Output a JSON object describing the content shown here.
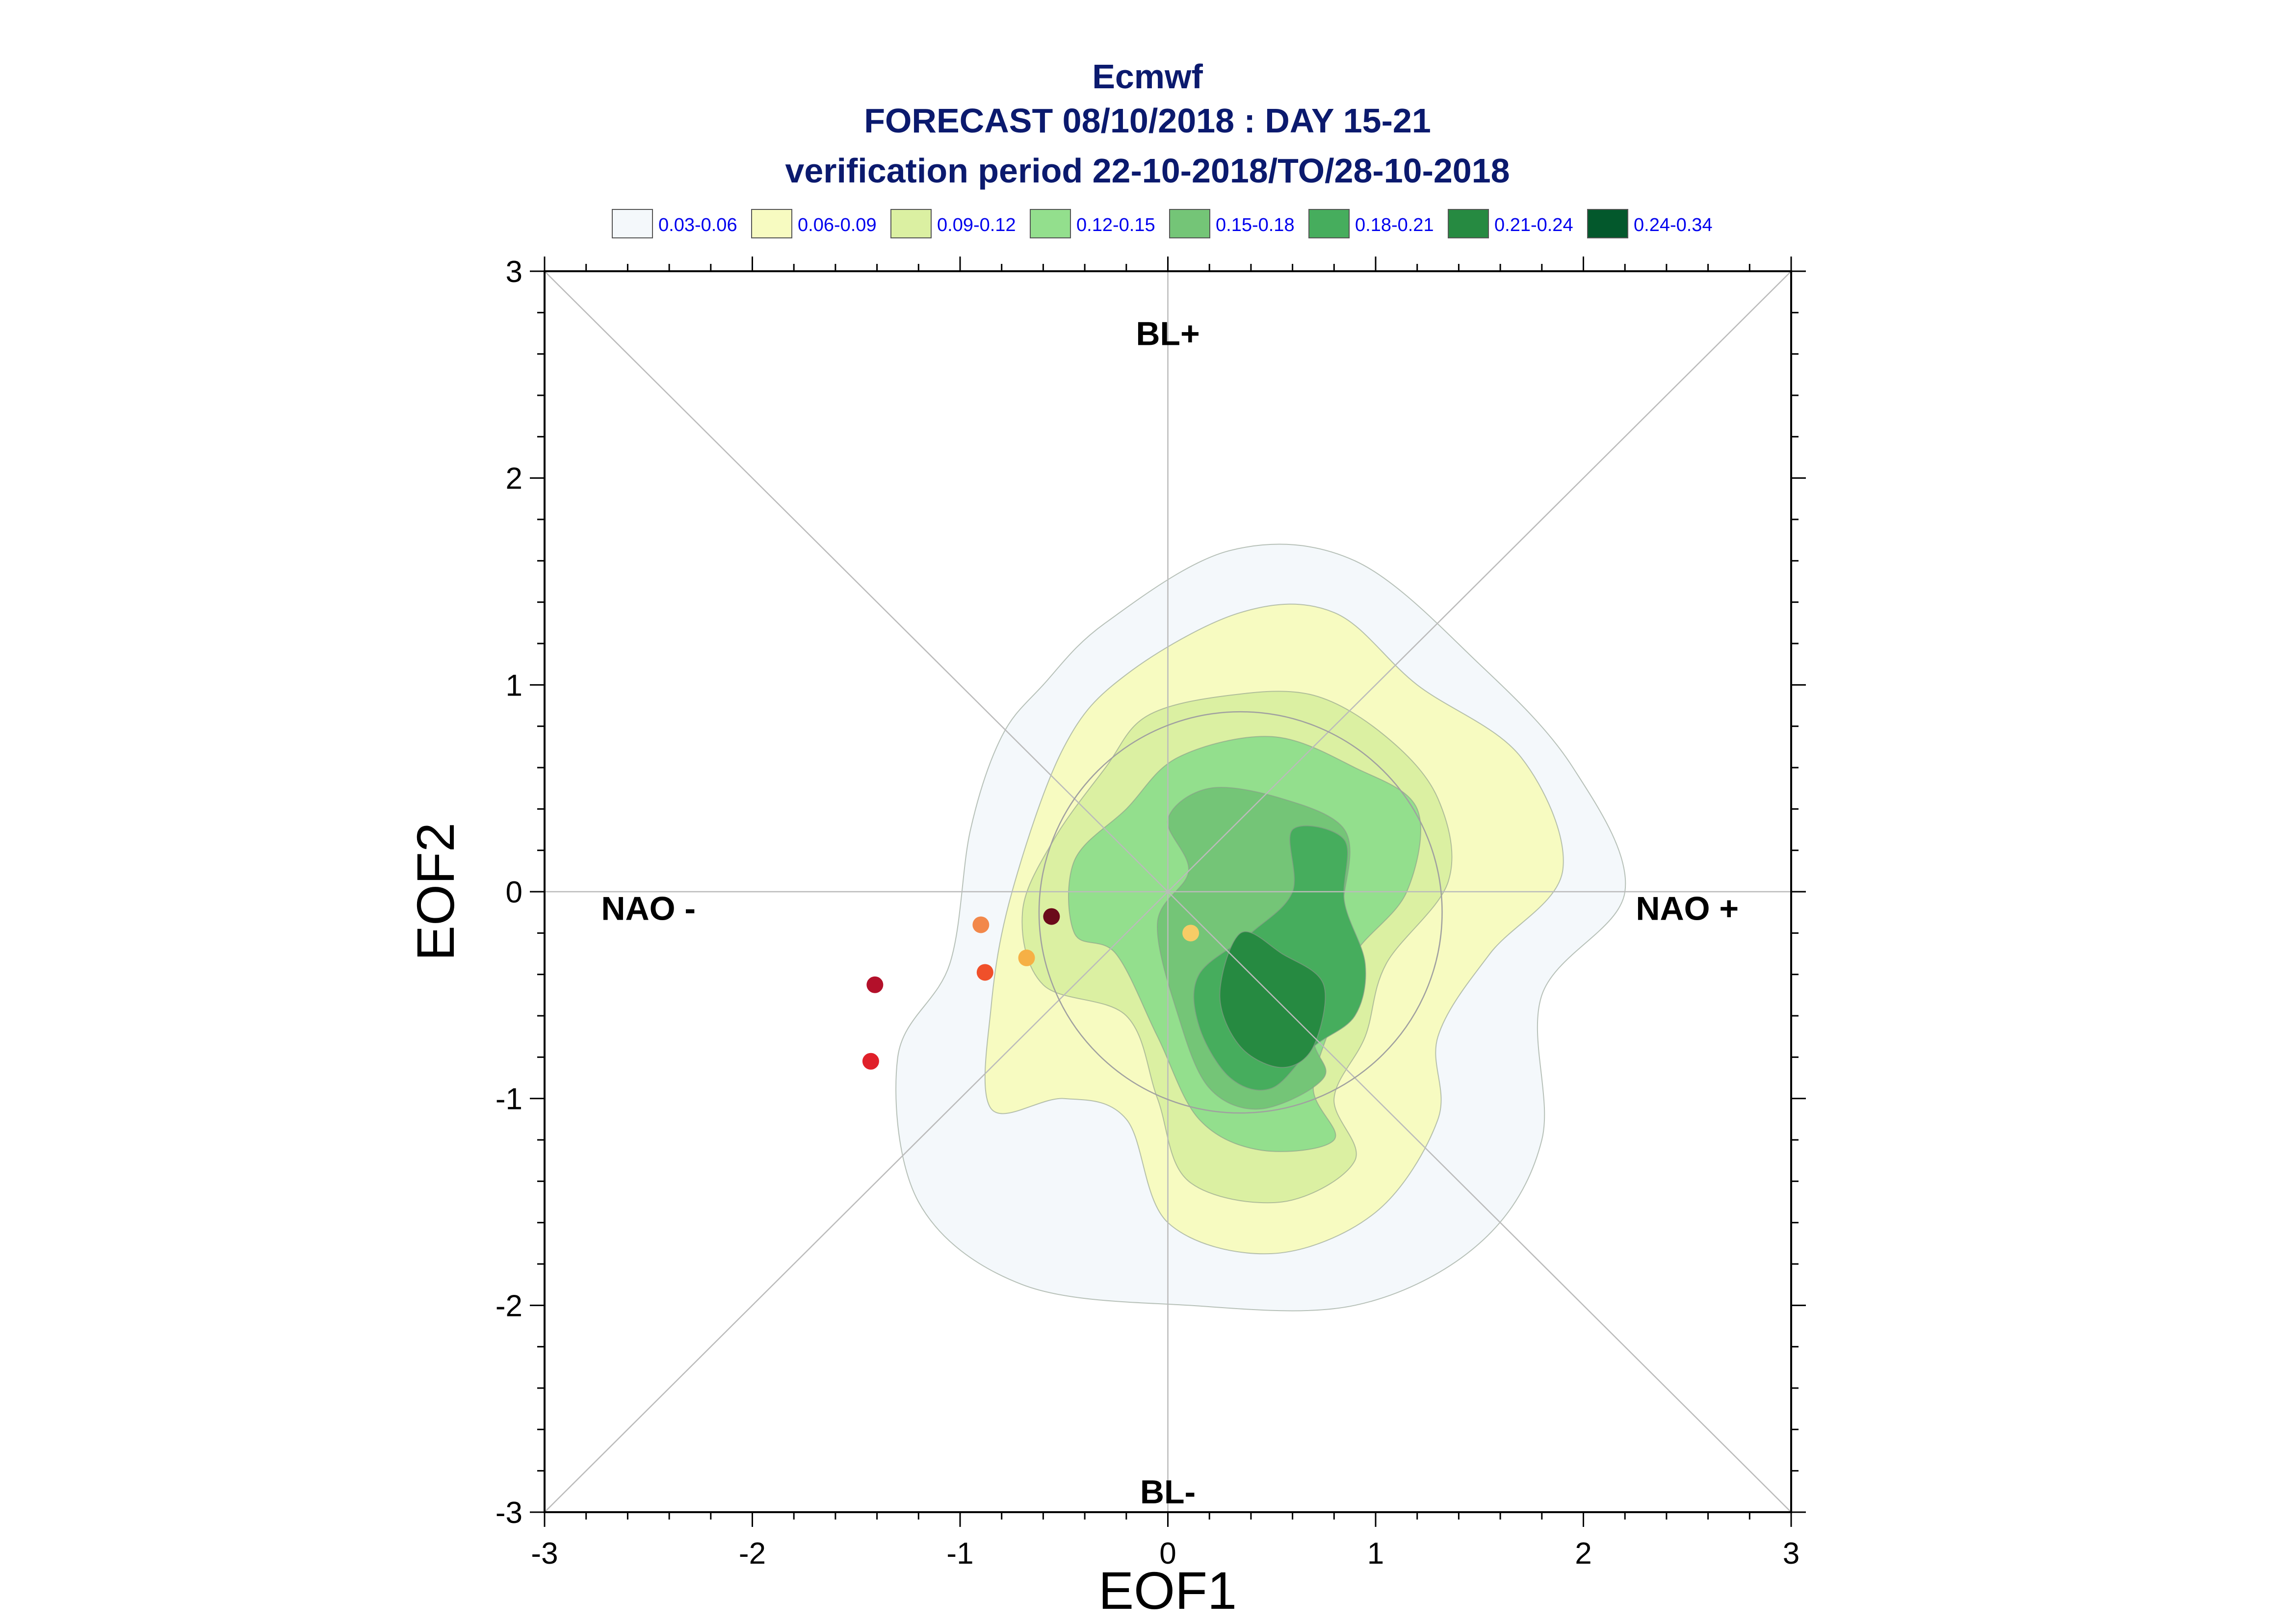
{
  "chart_data": {
    "type": "contour",
    "title_lines": [
      "Ecmwf",
      "FORECAST 08/10/2018 : DAY 15-21",
      "verification period 22-10-2018/TO/28-10-2018"
    ],
    "xlabel": "EOF1",
    "ylabel": "EOF2",
    "xlim": [
      -3,
      3
    ],
    "ylim": [
      -3,
      3
    ],
    "x_ticks": [
      "-3",
      "-2",
      "-1",
      "0",
      "1",
      "2",
      "3"
    ],
    "y_ticks": [
      "3",
      "2",
      "1",
      "0",
      "-1",
      "-2",
      "-3"
    ],
    "regimes": [
      {
        "label": "BL+",
        "x": 0,
        "y": 2.7
      },
      {
        "label": "BL-",
        "x": 0,
        "y": -2.9
      },
      {
        "label": "NAO -",
        "x": -2.5,
        "y": -0.08
      },
      {
        "label": "NAO +",
        "x": 2.5,
        "y": -0.08
      }
    ],
    "legend": [
      {
        "label": "0.03-0.06",
        "color": "#f4f8fb"
      },
      {
        "label": "0.06-0.09",
        "color": "#f7fbc1"
      },
      {
        "label": "0.09-0.12",
        "color": "#dbf0a2"
      },
      {
        "label": "0.12-0.15",
        "color": "#93df8d"
      },
      {
        "label": "0.15-0.18",
        "color": "#74c577"
      },
      {
        "label": "0.18-0.21",
        "color": "#46ad5d"
      },
      {
        "label": "0.21-0.24",
        "color": "#268a41"
      },
      {
        "label": "0.24-0.34",
        "color": "#03582c"
      }
    ],
    "contours": [
      {
        "level": "0.03-0.06",
        "color": "#f4f8fb",
        "points": [
          [
            -0.6,
            1.0
          ],
          [
            -0.3,
            1.3
          ],
          [
            0.3,
            1.65
          ],
          [
            0.9,
            1.6
          ],
          [
            1.5,
            1.1
          ],
          [
            1.95,
            0.6
          ],
          [
            2.2,
            0.0
          ],
          [
            1.8,
            -0.5
          ],
          [
            1.8,
            -1.2
          ],
          [
            1.5,
            -1.7
          ],
          [
            0.9,
            -2.0
          ],
          [
            0.1,
            -2.0
          ],
          [
            -0.7,
            -1.9
          ],
          [
            -1.2,
            -1.5
          ],
          [
            -1.3,
            -0.8
          ],
          [
            -1.05,
            -0.35
          ],
          [
            -0.95,
            0.3
          ],
          [
            -0.8,
            0.75
          ]
        ]
      },
      {
        "level": "0.06-0.09",
        "color": "#f7fbc1",
        "points": [
          [
            -0.5,
            0.7
          ],
          [
            -0.2,
            1.05
          ],
          [
            0.35,
            1.35
          ],
          [
            0.8,
            1.35
          ],
          [
            1.2,
            1.0
          ],
          [
            1.7,
            0.65
          ],
          [
            1.9,
            0.1
          ],
          [
            1.55,
            -0.3
          ],
          [
            1.3,
            -0.7
          ],
          [
            1.3,
            -1.1
          ],
          [
            1.0,
            -1.55
          ],
          [
            0.5,
            -1.75
          ],
          [
            0.0,
            -1.6
          ],
          [
            -0.2,
            -1.1
          ],
          [
            -0.5,
            -1.0
          ],
          [
            -0.85,
            -1.05
          ],
          [
            -0.85,
            -0.55
          ],
          [
            -0.75,
            0.0
          ]
        ]
      },
      {
        "level": "0.09-0.12",
        "color": "#dbf0a2",
        "points": [
          [
            -0.3,
            0.6
          ],
          [
            -0.1,
            0.85
          ],
          [
            0.3,
            0.95
          ],
          [
            0.7,
            0.95
          ],
          [
            1.05,
            0.75
          ],
          [
            1.3,
            0.45
          ],
          [
            1.35,
            0.05
          ],
          [
            1.05,
            -0.35
          ],
          [
            0.95,
            -0.7
          ],
          [
            0.8,
            -1.0
          ],
          [
            0.9,
            -1.3
          ],
          [
            0.55,
            -1.5
          ],
          [
            0.1,
            -1.4
          ],
          [
            -0.05,
            -1.0
          ],
          [
            -0.2,
            -0.6
          ],
          [
            -0.6,
            -0.45
          ],
          [
            -0.7,
            -0.1
          ],
          [
            -0.55,
            0.25
          ]
        ]
      },
      {
        "level": "0.12-0.15",
        "color": "#93df8d",
        "points": [
          [
            -0.2,
            0.4
          ],
          [
            0.05,
            0.65
          ],
          [
            0.5,
            0.75
          ],
          [
            0.9,
            0.6
          ],
          [
            1.2,
            0.4
          ],
          [
            1.15,
            0.0
          ],
          [
            0.9,
            -0.3
          ],
          [
            0.8,
            -0.6
          ],
          [
            0.7,
            -0.95
          ],
          [
            0.8,
            -1.2
          ],
          [
            0.45,
            -1.25
          ],
          [
            0.15,
            -1.1
          ],
          [
            -0.05,
            -0.7
          ],
          [
            -0.25,
            -0.3
          ],
          [
            -0.45,
            -0.2
          ],
          [
            -0.45,
            0.15
          ]
        ]
      },
      {
        "level": "0.15-0.18",
        "color": "#74c577",
        "points": [
          [
            0.2,
            0.5
          ],
          [
            0.55,
            0.45
          ],
          [
            0.85,
            0.3
          ],
          [
            0.85,
            0.0
          ],
          [
            0.75,
            -0.3
          ],
          [
            0.7,
            -0.7
          ],
          [
            0.75,
            -0.9
          ],
          [
            0.45,
            -1.05
          ],
          [
            0.2,
            -0.95
          ],
          [
            0.05,
            -0.6
          ],
          [
            -0.05,
            -0.15
          ],
          [
            0.1,
            0.1
          ],
          [
            0.0,
            0.35
          ]
        ]
      },
      {
        "level": "0.18-0.21",
        "color": "#46ad5d",
        "points": [
          [
            0.6,
            0.3
          ],
          [
            0.85,
            0.25
          ],
          [
            0.85,
            -0.05
          ],
          [
            0.95,
            -0.35
          ],
          [
            0.9,
            -0.6
          ],
          [
            0.7,
            -0.75
          ],
          [
            0.5,
            -0.95
          ],
          [
            0.3,
            -0.9
          ],
          [
            0.15,
            -0.65
          ],
          [
            0.15,
            -0.4
          ],
          [
            0.4,
            -0.2
          ],
          [
            0.6,
            0.0
          ]
        ]
      },
      {
        "level": "0.21-0.24",
        "color": "#268a41",
        "points": [
          [
            0.35,
            -0.2
          ],
          [
            0.55,
            -0.3
          ],
          [
            0.75,
            -0.45
          ],
          [
            0.7,
            -0.75
          ],
          [
            0.55,
            -0.85
          ],
          [
            0.35,
            -0.75
          ],
          [
            0.25,
            -0.5
          ]
        ]
      },
      {
        "level": "0.24-0.34",
        "color": "#03582c",
        "points": []
      }
    ],
    "reference_circle": {
      "cx": 0.35,
      "cy": -0.1,
      "r": 0.97
    },
    "points": [
      {
        "x": -0.56,
        "y": -0.12,
        "color": "#6b0a1a"
      },
      {
        "x": -0.9,
        "y": -0.16,
        "color": "#f2884a"
      },
      {
        "x": -0.88,
        "y": -0.39,
        "color": "#f0502a"
      },
      {
        "x": -0.68,
        "y": -0.32,
        "color": "#f6b045"
      },
      {
        "x": 0.11,
        "y": -0.2,
        "color": "#f7cc66"
      },
      {
        "x": -1.41,
        "y": -0.45,
        "color": "#b3102a"
      },
      {
        "x": -1.43,
        "y": -0.82,
        "color": "#e0202a"
      }
    ]
  }
}
